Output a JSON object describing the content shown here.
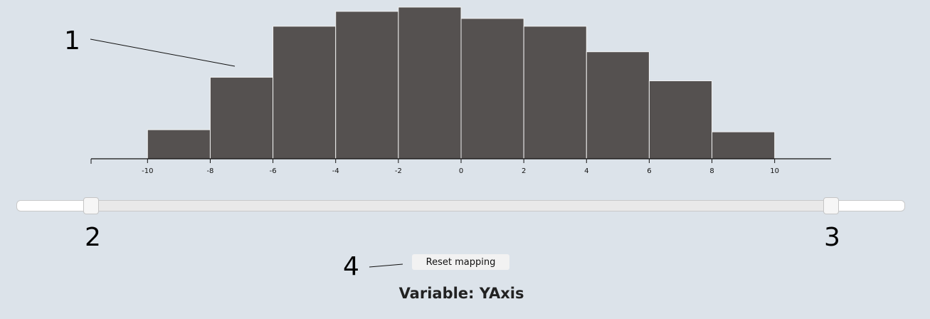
{
  "chart_data": {
    "type": "bar",
    "subtype": "histogram",
    "bins": [
      {
        "from": -10,
        "to": -8,
        "value": 41
      },
      {
        "from": -8,
        "to": -6,
        "value": 115
      },
      {
        "from": -6,
        "to": -4,
        "value": 187
      },
      {
        "from": -4,
        "to": -2,
        "value": 208
      },
      {
        "from": -2,
        "to": 0,
        "value": 214
      },
      {
        "from": 0,
        "to": 2,
        "value": 198
      },
      {
        "from": 2,
        "to": 4,
        "value": 187
      },
      {
        "from": 4,
        "to": 6,
        "value": 151
      },
      {
        "from": 6,
        "to": 8,
        "value": 110
      },
      {
        "from": 8,
        "to": 10,
        "value": 38
      }
    ],
    "ticks": [
      "-10",
      "-8",
      "-6",
      "-4",
      "-2",
      "0",
      "2",
      "4",
      "6",
      "8",
      "10"
    ],
    "xlim": [
      -11.8,
      11.8
    ],
    "ylim": [
      0,
      215
    ],
    "title": "",
    "xlabel": "",
    "ylabel": "",
    "grid": false
  },
  "callouts": {
    "c1": "1",
    "c2": "2",
    "c3": "3",
    "c4": "4"
  },
  "slider": {
    "min_value": -11.8,
    "max_value": 11.8,
    "low_handle_value": -11.8,
    "high_handle_value": 11.8
  },
  "reset_button": {
    "label": "Reset mapping"
  },
  "variable": {
    "label": "Variable: YAxis"
  }
}
